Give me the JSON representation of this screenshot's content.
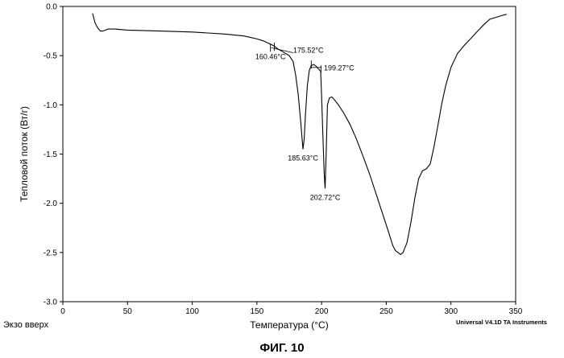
{
  "chart_data": {
    "type": "line",
    "title": "",
    "xlabel": "Температура (°C)",
    "ylabel": "Тепловой поток (Вт/г)",
    "xlim": [
      0,
      350
    ],
    "ylim": [
      -3.0,
      0.0
    ],
    "x_ticks": [
      "0",
      "50",
      "100",
      "150",
      "200",
      "250",
      "300",
      "350"
    ],
    "y_ticks": [
      "0.0",
      "-0.5",
      "-1.0",
      "-1.5",
      "-2.0",
      "-2.5",
      "-3.0"
    ],
    "grid": false,
    "series": [
      {
        "points": [
          [
            23,
            -0.07
          ],
          [
            25,
            -0.17
          ],
          [
            27,
            -0.22
          ],
          [
            29,
            -0.25
          ],
          [
            31,
            -0.25
          ],
          [
            33,
            -0.24
          ],
          [
            35,
            -0.23
          ],
          [
            40,
            -0.23
          ],
          [
            50,
            -0.24
          ],
          [
            75,
            -0.25
          ],
          [
            100,
            -0.26
          ],
          [
            125,
            -0.28
          ],
          [
            140,
            -0.3
          ],
          [
            150,
            -0.33
          ],
          [
            155,
            -0.35
          ],
          [
            160,
            -0.38
          ],
          [
            163,
            -0.4
          ],
          [
            166,
            -0.43
          ],
          [
            170,
            -0.46
          ],
          [
            175,
            -0.5
          ],
          [
            178,
            -0.56
          ],
          [
            180,
            -0.7
          ],
          [
            182,
            -0.9
          ],
          [
            184,
            -1.2
          ],
          [
            185.6,
            -1.45
          ],
          [
            186.5,
            -1.35
          ],
          [
            187.5,
            -1.1
          ],
          [
            189,
            -0.8
          ],
          [
            190.5,
            -0.65
          ],
          [
            192,
            -0.6
          ],
          [
            194,
            -0.59
          ],
          [
            196,
            -0.61
          ],
          [
            198,
            -0.64
          ],
          [
            199.3,
            -0.66
          ],
          [
            200,
            -0.9
          ],
          [
            201,
            -1.3
          ],
          [
            202,
            -1.7
          ],
          [
            202.7,
            -1.85
          ],
          [
            203.5,
            -1.5
          ],
          [
            204.5,
            -1.0
          ],
          [
            206,
            -0.93
          ],
          [
            208,
            -0.92
          ],
          [
            210,
            -0.95
          ],
          [
            213,
            -1.0
          ],
          [
            217,
            -1.08
          ],
          [
            222,
            -1.2
          ],
          [
            227,
            -1.35
          ],
          [
            232,
            -1.52
          ],
          [
            237,
            -1.7
          ],
          [
            242,
            -1.9
          ],
          [
            247,
            -2.1
          ],
          [
            252,
            -2.3
          ],
          [
            255,
            -2.43
          ],
          [
            257,
            -2.48
          ],
          [
            259,
            -2.5
          ],
          [
            261,
            -2.52
          ],
          [
            263,
            -2.5
          ],
          [
            266,
            -2.4
          ],
          [
            269,
            -2.2
          ],
          [
            272,
            -1.95
          ],
          [
            275,
            -1.75
          ],
          [
            278,
            -1.67
          ],
          [
            281,
            -1.65
          ],
          [
            284,
            -1.6
          ],
          [
            287,
            -1.42
          ],
          [
            290,
            -1.2
          ],
          [
            293,
            -0.98
          ],
          [
            296,
            -0.8
          ],
          [
            300,
            -0.62
          ],
          [
            305,
            -0.48
          ],
          [
            310,
            -0.4
          ],
          [
            315,
            -0.33
          ],
          [
            320,
            -0.26
          ],
          [
            325,
            -0.19
          ],
          [
            330,
            -0.13
          ],
          [
            335,
            -0.11
          ],
          [
            340,
            -0.09
          ],
          [
            343,
            -0.08
          ]
        ]
      }
    ],
    "baseline_segments": [
      {
        "from": [
          161,
          -0.42
        ],
        "to": [
          178,
          -0.47
        ]
      },
      {
        "from": [
          192,
          -0.62
        ],
        "to": [
          200,
          -0.62
        ]
      }
    ],
    "onset_markers": [
      {
        "x": 160.46,
        "y": -0.42
      },
      {
        "x": 163.5,
        "y": -0.41
      },
      {
        "x": 192,
        "y": -0.59
      },
      {
        "x": 199.5,
        "y": -0.64
      }
    ],
    "annotations": [
      {
        "text": "160.46°C",
        "x": 160.46,
        "y": -0.42,
        "anchor": "below"
      },
      {
        "text": "175.52°C",
        "x": 175.52,
        "y": -0.46,
        "anchor": "right"
      },
      {
        "text": "199.27°C",
        "x": 199.27,
        "y": -0.64,
        "anchor": "right"
      },
      {
        "text": "185.63°C",
        "x": 185.63,
        "y": -1.45,
        "anchor": "below"
      },
      {
        "text": "202.72°C",
        "x": 202.72,
        "y": -1.85,
        "anchor": "below"
      }
    ]
  },
  "captions": {
    "exo": "Экзо вверх",
    "credit": "Universal V4.1D TA Instruments",
    "figure": "ФИГ. 10"
  },
  "colors": {
    "line": "#000000",
    "background": "#ffffff"
  }
}
